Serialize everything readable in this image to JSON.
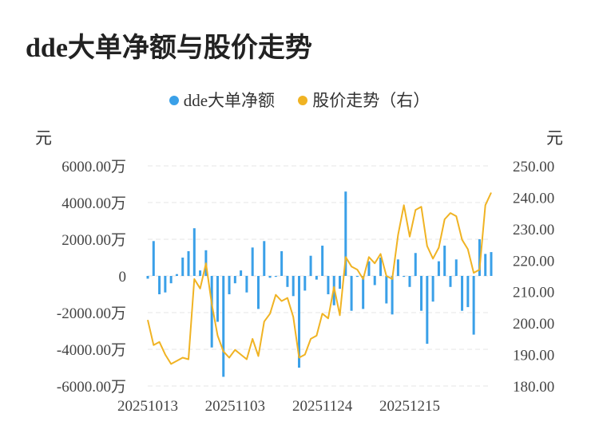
{
  "title": "dde大单净额与股价走势",
  "legend": {
    "bar_label": "dde大单净额",
    "line_label": "股价走势（右）"
  },
  "units": {
    "left": "元",
    "right": "元"
  },
  "colors": {
    "bar": "#3aa0e8",
    "line": "#f0b323",
    "grid": "#e6e6e6"
  },
  "chart_data": {
    "type": "bar",
    "title": "dde大单净额与股价走势",
    "x_tick_labels": [
      "20251013",
      "20251103",
      "20251124",
      "20251215"
    ],
    "x_tick_indices": [
      0,
      15,
      30,
      45
    ],
    "y_left": {
      "ylim": [
        -6000,
        6000
      ],
      "ticks": [
        6000,
        4000,
        2000,
        0,
        -2000,
        -4000,
        -6000
      ],
      "tick_labels": [
        "6000.00万",
        "4000.00万",
        "2000.00万",
        "0",
        "-2000.00万",
        "-4000.00万",
        "-6000.00万"
      ]
    },
    "y_right": {
      "ylim": [
        180,
        250
      ],
      "ticks": [
        250,
        240,
        230,
        220,
        210,
        200,
        190,
        180
      ],
      "tick_labels": [
        "250.00",
        "240.00",
        "230.00",
        "220.00",
        "210.00",
        "200.00",
        "190.00",
        "180.00"
      ]
    },
    "series": [
      {
        "name": "dde大单净额",
        "type": "bar",
        "axis": "left",
        "values": [
          -150,
          1900,
          -1000,
          -900,
          -400,
          100,
          1000,
          1350,
          2600,
          300,
          1400,
          -3900,
          -2500,
          -5500,
          -1000,
          -400,
          300,
          -900,
          1550,
          -1800,
          1900,
          -100,
          -50,
          1350,
          -600,
          -1100,
          -5000,
          -800,
          1100,
          -200,
          1650,
          -1000,
          -1600,
          -700,
          4600,
          -1900,
          -50,
          -1800,
          800,
          -500,
          1000,
          -1500,
          -2100,
          900,
          -50,
          -600,
          1250,
          -1900,
          -3700,
          -1400,
          800,
          1650,
          -600,
          900,
          -1900,
          -1700,
          -3200,
          2000,
          1200,
          1300
        ]
      },
      {
        "name": "股价走势（右）",
        "type": "line",
        "axis": "right",
        "values": [
          201,
          193,
          194,
          190,
          187,
          188,
          189,
          188.5,
          214,
          211,
          219,
          206,
          196,
          191,
          189,
          191.5,
          190,
          188.5,
          195,
          189.5,
          200.5,
          203,
          209,
          207,
          208,
          202,
          189,
          190,
          195,
          196,
          203,
          201.5,
          211.5,
          202.5,
          221,
          218,
          217,
          214,
          221,
          219,
          222,
          215,
          214,
          228,
          237.5,
          227.5,
          236,
          237,
          224.5,
          220.5,
          224,
          233,
          235,
          234,
          226.5,
          223.5,
          216,
          217,
          237.5,
          241.5
        ]
      }
    ]
  }
}
